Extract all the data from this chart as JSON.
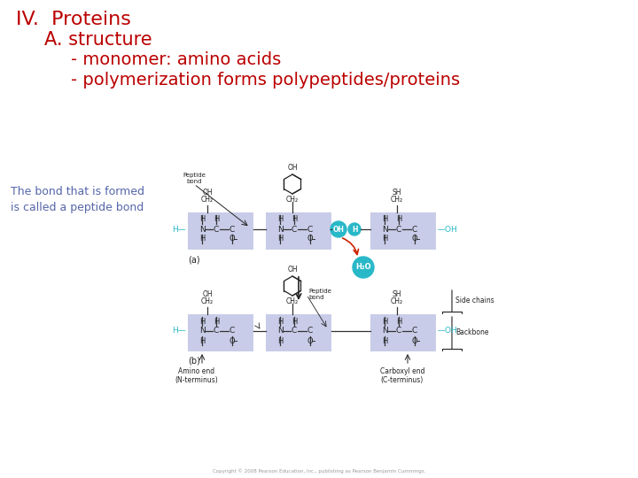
{
  "bg_color": "#ffffff",
  "title_line1": "IV.  Proteins",
  "title_line2": "A. structure",
  "title_line3": "- monomer: amino acids",
  "title_line4": "- polymerization forms polypeptides/proteins",
  "title_color": "#bb0000",
  "annotation_line1": "The bond that is formed",
  "annotation_line2": "is called a peptide bond",
  "annotation_color": "#5566aa",
  "annotation_fontsize": 9,
  "title_fontsize_1": 16,
  "title_fontsize_2": 15,
  "title_fontsize_3": 14,
  "title_fontsize_4": 14,
  "box_color": "#c8cce8",
  "cyan_color": "#29b8c8",
  "dark_text": "#222222",
  "line_color": "#444444",
  "arrow_color": "#cc2200"
}
